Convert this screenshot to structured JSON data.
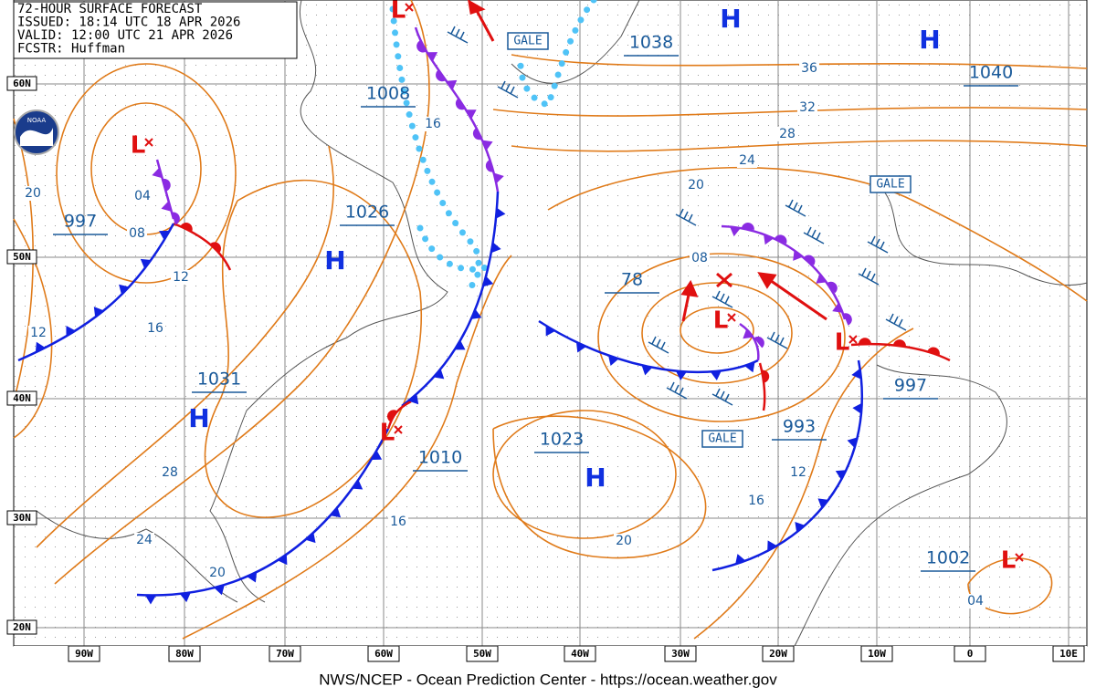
{
  "header": {
    "lines": [
      "72-HOUR SURFACE FORECAST",
      "ISSUED: 18:14 UTC 18 APR 2026",
      "VALID: 12:00 UTC 21 APR 2026",
      "FCSTR: Huffman"
    ]
  },
  "logo": "NOAA",
  "lat_labels": [
    "60N",
    "50N",
    "40N",
    "30N",
    "20N"
  ],
  "lon_labels": [
    "90W",
    "80W",
    "70W",
    "60W",
    "50W",
    "40W",
    "30W",
    "20W",
    "10W",
    "0",
    "10E"
  ],
  "highs": [
    "H",
    "H",
    "H",
    "H",
    "H"
  ],
  "lows": [
    "L",
    "L",
    "L",
    "L",
    "L",
    "L"
  ],
  "pressure_labels": [
    "1038",
    "1040",
    "1008",
    "1026",
    "997",
    "1031",
    "1010",
    "1023",
    "78",
    "993",
    "997",
    "1002"
  ],
  "isobar_labels": [
    "36",
    "32",
    "28",
    "24",
    "20",
    "08",
    "16",
    "04",
    "08",
    "12",
    "16",
    "12",
    "20",
    "28",
    "24",
    "20",
    "16",
    "20",
    "16",
    "12",
    "04"
  ],
  "gale_labels": [
    "GALE",
    "GALE",
    "GALE"
  ],
  "footer": "NWS/NCEP - Ocean Prediction Center - https://ocean.weather.gov"
}
